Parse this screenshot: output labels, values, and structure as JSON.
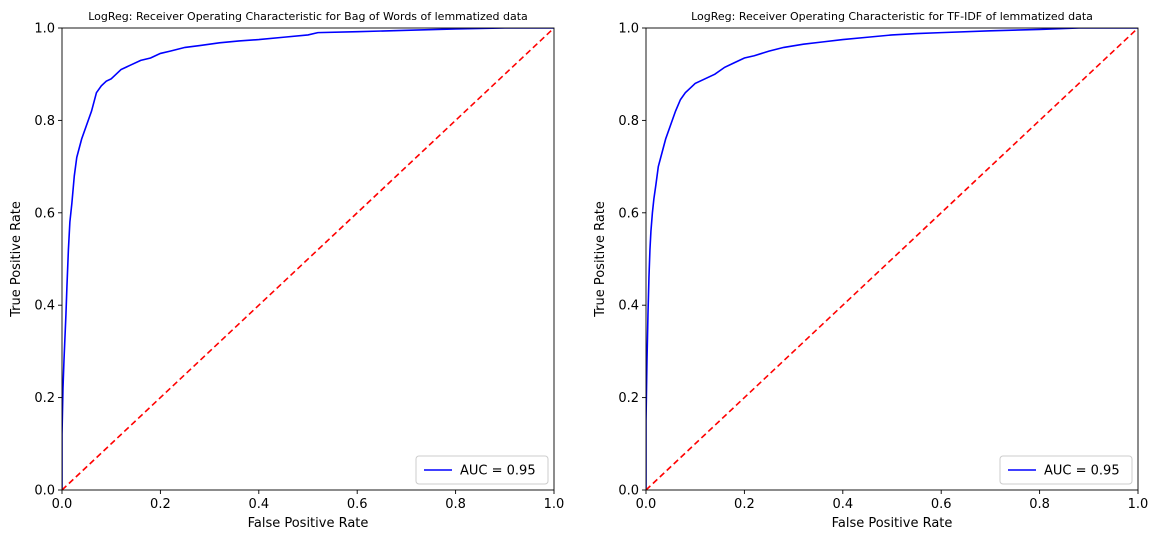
{
  "chart_data": [
    {
      "type": "line",
      "title": "LogReg: Receiver Operating Characteristic for Bag of Words of lemmatized data",
      "xlabel": "False Positive Rate",
      "ylabel": "True Positive Rate",
      "xlim": [
        0,
        1
      ],
      "ylim": [
        0,
        1
      ],
      "xticks": [
        "0.0",
        "0.2",
        "0.4",
        "0.6",
        "0.8",
        "1.0"
      ],
      "yticks": [
        "0.0",
        "0.2",
        "0.4",
        "0.6",
        "0.8",
        "1.0"
      ],
      "grid": false,
      "legend_position": "lower-right",
      "series": [
        {
          "name": "AUC = 0.95",
          "color": "#0000ff",
          "style": "solid",
          "x": [
            0.0,
            0.0,
            0.002,
            0.004,
            0.006,
            0.008,
            0.01,
            0.013,
            0.016,
            0.02,
            0.025,
            0.03,
            0.035,
            0.04,
            0.05,
            0.06,
            0.07,
            0.08,
            0.09,
            0.1,
            0.11,
            0.12,
            0.13,
            0.14,
            0.16,
            0.18,
            0.2,
            0.22,
            0.25,
            0.28,
            0.32,
            0.36,
            0.4,
            0.45,
            0.5,
            0.52,
            0.6,
            0.7,
            0.8,
            0.9,
            1.0
          ],
          "y": [
            0.0,
            0.12,
            0.22,
            0.28,
            0.33,
            0.38,
            0.44,
            0.52,
            0.58,
            0.62,
            0.68,
            0.72,
            0.74,
            0.76,
            0.79,
            0.82,
            0.86,
            0.875,
            0.885,
            0.89,
            0.9,
            0.91,
            0.915,
            0.92,
            0.93,
            0.935,
            0.945,
            0.95,
            0.958,
            0.962,
            0.968,
            0.972,
            0.975,
            0.98,
            0.985,
            0.99,
            0.992,
            0.995,
            0.998,
            1.0,
            1.0
          ]
        },
        {
          "name": "",
          "color": "#ff0000",
          "style": "dashed",
          "x": [
            0,
            1
          ],
          "y": [
            0,
            1
          ]
        }
      ]
    },
    {
      "type": "line",
      "title": "LogReg: Receiver Operating Characteristic for TF-IDF of lemmatized data",
      "xlabel": "False Positive Rate",
      "ylabel": "True Positive Rate",
      "xlim": [
        0,
        1
      ],
      "ylim": [
        0,
        1
      ],
      "xticks": [
        "0.0",
        "0.2",
        "0.4",
        "0.6",
        "0.8",
        "1.0"
      ],
      "yticks": [
        "0.0",
        "0.2",
        "0.4",
        "0.6",
        "0.8",
        "1.0"
      ],
      "grid": false,
      "legend_position": "lower-right",
      "series": [
        {
          "name": "AUC = 0.95",
          "color": "#0000ff",
          "style": "solid",
          "x": [
            0.0,
            0.0,
            0.002,
            0.004,
            0.006,
            0.008,
            0.01,
            0.013,
            0.016,
            0.02,
            0.025,
            0.03,
            0.035,
            0.04,
            0.05,
            0.06,
            0.07,
            0.08,
            0.09,
            0.1,
            0.12,
            0.14,
            0.16,
            0.18,
            0.2,
            0.22,
            0.25,
            0.28,
            0.32,
            0.36,
            0.4,
            0.45,
            0.5,
            0.55,
            0.6,
            0.7,
            0.8,
            0.88,
            1.0
          ],
          "y": [
            0.0,
            0.15,
            0.28,
            0.38,
            0.46,
            0.52,
            0.56,
            0.6,
            0.63,
            0.66,
            0.7,
            0.72,
            0.74,
            0.76,
            0.79,
            0.82,
            0.845,
            0.86,
            0.87,
            0.88,
            0.89,
            0.9,
            0.915,
            0.925,
            0.935,
            0.94,
            0.95,
            0.958,
            0.965,
            0.97,
            0.975,
            0.98,
            0.985,
            0.988,
            0.99,
            0.994,
            0.997,
            1.0,
            1.0
          ]
        },
        {
          "name": "",
          "color": "#ff0000",
          "style": "dashed",
          "x": [
            0,
            1
          ],
          "y": [
            0,
            1
          ]
        }
      ]
    }
  ]
}
